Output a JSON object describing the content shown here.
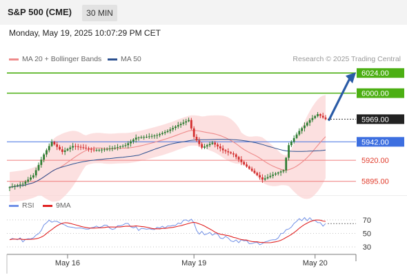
{
  "header": {
    "symbol": "S&P 500 (CME)",
    "timeframe": "30 MIN"
  },
  "datetime": "Monday, May 19, 2025 10:07:29 PM CET",
  "credit": "Research © 2025 Trading Central",
  "colors": {
    "up": "#2e7d32",
    "down": "#d32f2f",
    "band": "#fbd6d6",
    "ma20": "#ee8a8a",
    "ma50": "#2a4f8f",
    "resistance": "#4caf13",
    "support": "#ef7b7b",
    "pivot": "#3d6fe0",
    "arrow": "#2a5ba6",
    "rsi": "#6f8fe6",
    "rsi_ma": "#e02020"
  },
  "chart_data": [
    {
      "type": "candlestick",
      "legend": [
        "MA 20 + Bollinger Bands",
        "MA 50"
      ],
      "legend_placement": "top-left",
      "ylim": [
        5880,
        6034
      ],
      "x_ticks": [
        "May 16",
        "May 19",
        "May 20"
      ],
      "x_tick_index": [
        22,
        70,
        116
      ],
      "current_price": "5969.00",
      "levels": [
        {
          "label": "6024.00",
          "value": 6024,
          "kind": "resistance"
        },
        {
          "label": "6000.00",
          "value": 6000,
          "kind": "resistance"
        },
        {
          "label": "5942.00",
          "value": 5942,
          "kind": "pivot"
        },
        {
          "label": "5920.00",
          "value": 5920,
          "kind": "support"
        },
        {
          "label": "5895.00",
          "value": 5895,
          "kind": "support"
        }
      ],
      "anchors": [
        {
          "i": 0,
          "v": 5888
        },
        {
          "i": 5,
          "v": 5892
        },
        {
          "i": 9,
          "v": 5902
        },
        {
          "i": 13,
          "v": 5927
        },
        {
          "i": 16,
          "v": 5942
        },
        {
          "i": 20,
          "v": 5930
        },
        {
          "i": 24,
          "v": 5937
        },
        {
          "i": 28,
          "v": 5935
        },
        {
          "i": 32,
          "v": 5932
        },
        {
          "i": 36,
          "v": 5933
        },
        {
          "i": 40,
          "v": 5935
        },
        {
          "i": 44,
          "v": 5938
        },
        {
          "i": 48,
          "v": 5947
        },
        {
          "i": 52,
          "v": 5948
        },
        {
          "i": 56,
          "v": 5950
        },
        {
          "i": 60,
          "v": 5955
        },
        {
          "i": 64,
          "v": 5962
        },
        {
          "i": 68,
          "v": 5968
        },
        {
          "i": 70,
          "v": 5948
        },
        {
          "i": 73,
          "v": 5935
        },
        {
          "i": 77,
          "v": 5941
        },
        {
          "i": 81,
          "v": 5932
        },
        {
          "i": 85,
          "v": 5927
        },
        {
          "i": 89,
          "v": 5915
        },
        {
          "i": 93,
          "v": 5905
        },
        {
          "i": 96,
          "v": 5897
        },
        {
          "i": 100,
          "v": 5903
        },
        {
          "i": 104,
          "v": 5908
        },
        {
          "i": 106,
          "v": 5938
        },
        {
          "i": 110,
          "v": 5955
        },
        {
          "i": 114,
          "v": 5968
        },
        {
          "i": 117,
          "v": 5975
        },
        {
          "i": 120,
          "v": 5969
        }
      ]
    },
    {
      "type": "line",
      "legend": [
        "RSI",
        "9MA"
      ],
      "legend_placement": "top-left",
      "ylim": [
        20,
        80
      ],
      "y_ticks": [
        70,
        50,
        30
      ],
      "anchors": [
        {
          "i": 0,
          "v": 42
        },
        {
          "i": 5,
          "v": 40
        },
        {
          "i": 10,
          "v": 48
        },
        {
          "i": 15,
          "v": 68
        },
        {
          "i": 20,
          "v": 63
        },
        {
          "i": 25,
          "v": 58
        },
        {
          "i": 30,
          "v": 55
        },
        {
          "i": 35,
          "v": 60
        },
        {
          "i": 40,
          "v": 58
        },
        {
          "i": 45,
          "v": 63
        },
        {
          "i": 50,
          "v": 55
        },
        {
          "i": 55,
          "v": 56
        },
        {
          "i": 60,
          "v": 60
        },
        {
          "i": 65,
          "v": 66
        },
        {
          "i": 69,
          "v": 70
        },
        {
          "i": 72,
          "v": 50
        },
        {
          "i": 76,
          "v": 52
        },
        {
          "i": 80,
          "v": 45
        },
        {
          "i": 85,
          "v": 40
        },
        {
          "i": 90,
          "v": 38
        },
        {
          "i": 95,
          "v": 33
        },
        {
          "i": 100,
          "v": 40
        },
        {
          "i": 105,
          "v": 55
        },
        {
          "i": 110,
          "v": 70
        },
        {
          "i": 114,
          "v": 72
        },
        {
          "i": 117,
          "v": 65
        },
        {
          "i": 120,
          "v": 62
        }
      ]
    }
  ]
}
